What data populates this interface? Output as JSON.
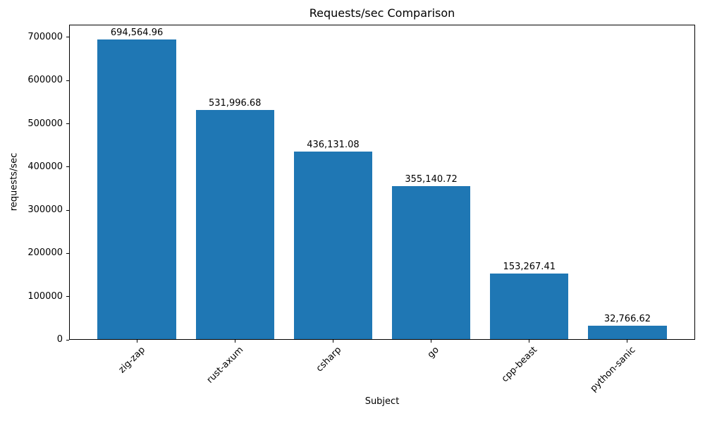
{
  "chart_data": {
    "type": "bar",
    "title": "Requests/sec Comparison",
    "xlabel": "Subject",
    "ylabel": "requests/sec",
    "categories": [
      "zig-zap",
      "rust-axum",
      "csharp",
      "go",
      "cpp-beast",
      "python-sanic"
    ],
    "values": [
      694564.96,
      531996.68,
      436131.08,
      355140.72,
      153267.41,
      32766.62
    ],
    "value_labels": [
      "694,564.96",
      "531,996.68",
      "436,131.08",
      "355,140.72",
      "153,267.41",
      "32,766.62"
    ],
    "yticks": [
      0,
      100000,
      200000,
      300000,
      400000,
      500000,
      600000,
      700000
    ],
    "ylim": [
      0,
      729293
    ],
    "bar_color": "#1f77b4",
    "axis_color": "#000000",
    "grid": false,
    "legend": "none",
    "xtick_rotation_deg": 45
  }
}
